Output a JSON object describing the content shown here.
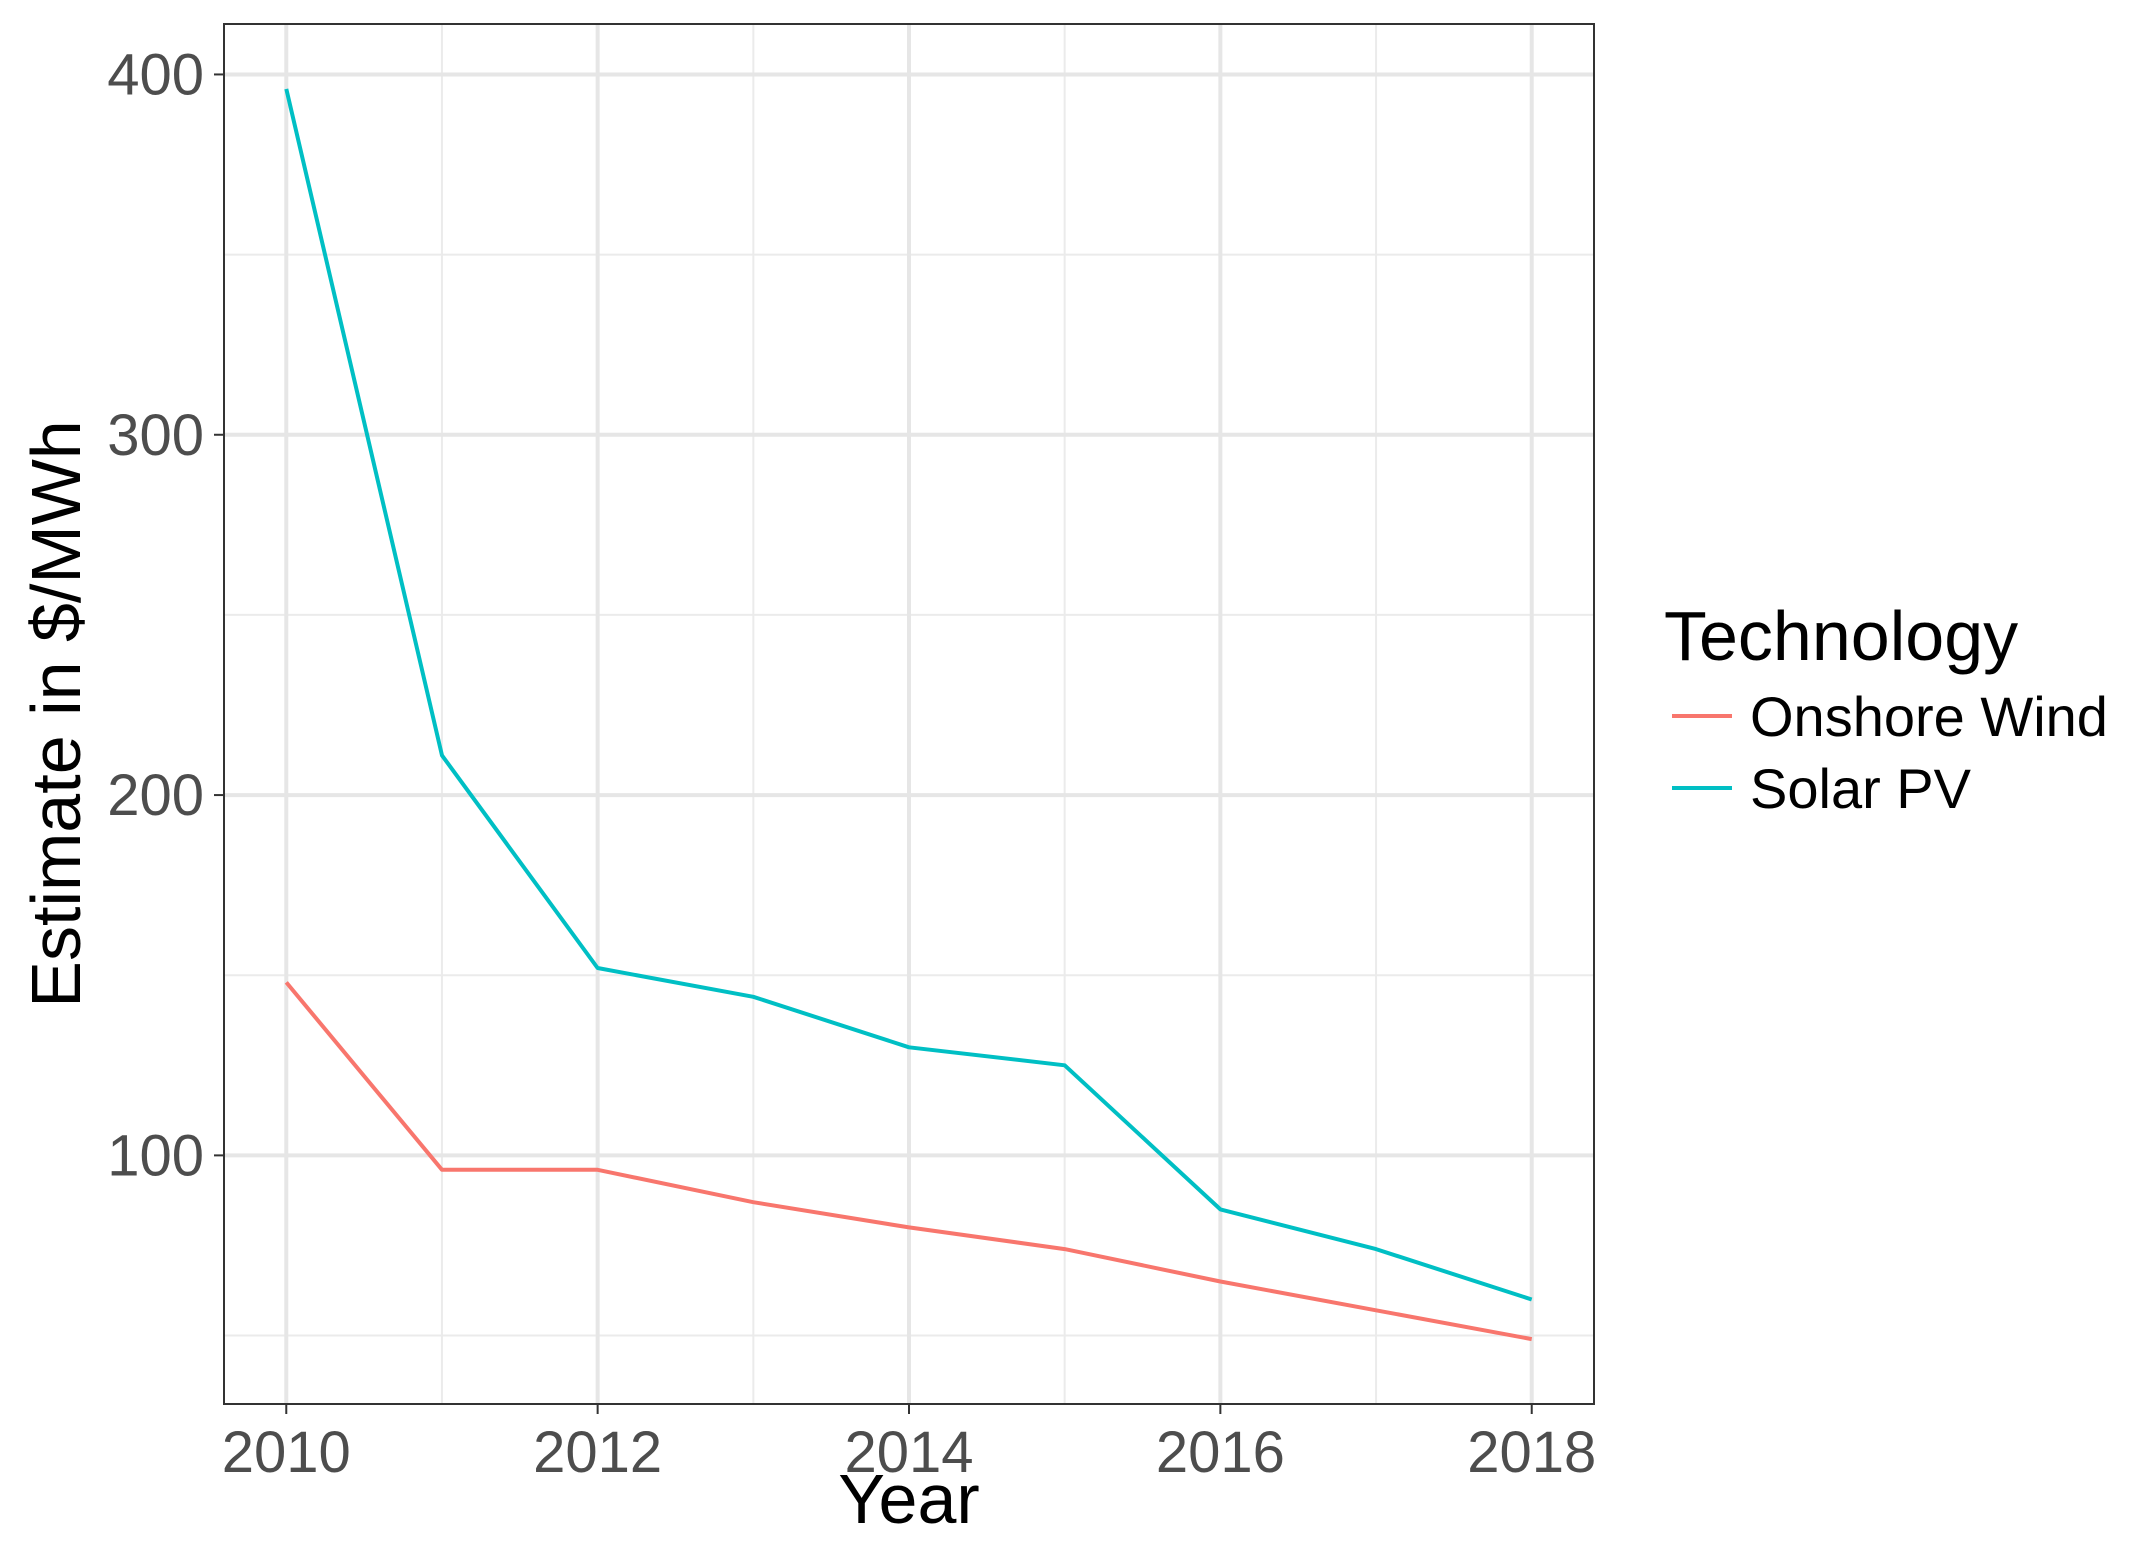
{
  "chart_data": {
    "type": "line",
    "title": "",
    "xlabel": "Year",
    "ylabel": "Estimate in $/MWh",
    "x": [
      2010,
      2011,
      2012,
      2013,
      2014,
      2015,
      2016,
      2017,
      2018
    ],
    "x_ticks": [
      "2010",
      "2012",
      "2014",
      "2016",
      "2018"
    ],
    "y_ticks": [
      "100",
      "200",
      "300",
      "400"
    ],
    "xlim": [
      2009.6,
      2018.4
    ],
    "ylim": [
      31,
      414
    ],
    "grid": true,
    "legend": {
      "title": "Technology",
      "placement": "right"
    },
    "series": [
      {
        "name": "Onshore Wind",
        "color": "#F8766D",
        "values": [
          148,
          96,
          96,
          87,
          80,
          74,
          65,
          57,
          49
        ]
      },
      {
        "name": "Solar PV",
        "color": "#00BFC4",
        "values": [
          396,
          211,
          152,
          144,
          130,
          125,
          85,
          74,
          60
        ]
      }
    ]
  }
}
